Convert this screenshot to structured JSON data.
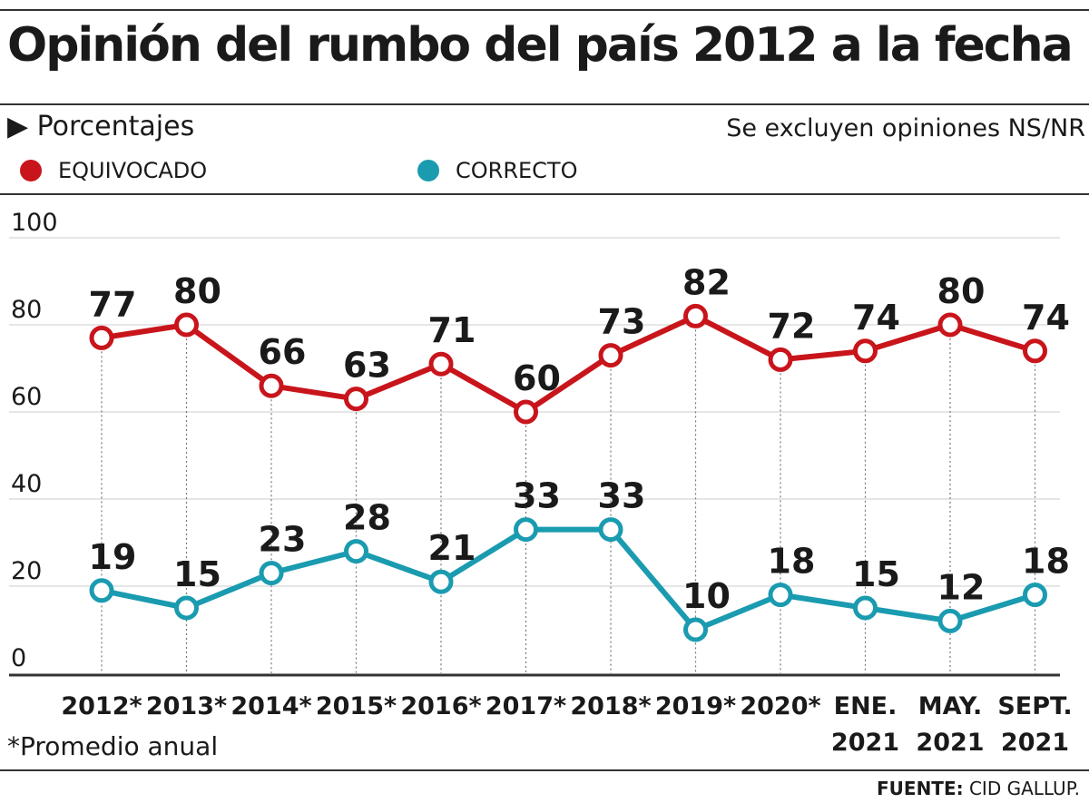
{
  "title": "Opinión del rumbo del país 2012 a la fecha",
  "subtitle": "Porcentajes",
  "note": "Se excluyen opiniones NS/NR",
  "footnote": "*Promedio anual",
  "source_label": "FUENTE:",
  "source": "CID GALLUP.",
  "chart_data": {
    "type": "line",
    "title": "Opinión del rumbo del país 2012 a la fecha",
    "ylim": [
      0,
      100
    ],
    "yticks": [
      0,
      20,
      40,
      60,
      80,
      100
    ],
    "grid": true,
    "legend_placement": "top-left",
    "categories": [
      [
        "2012*"
      ],
      [
        "2013*"
      ],
      [
        "2014*"
      ],
      [
        "2015*"
      ],
      [
        "2016*"
      ],
      [
        "2017*"
      ],
      [
        "2018*"
      ],
      [
        "2019*"
      ],
      [
        "2020*"
      ],
      [
        "ENE.",
        "2021"
      ],
      [
        "MAY.",
        "2021"
      ],
      [
        "SEPT.",
        "2021"
      ]
    ],
    "series": [
      {
        "name": "EQUIVOCADO",
        "color": "#c8151b",
        "values": [
          77,
          80,
          66,
          63,
          71,
          60,
          73,
          82,
          72,
          74,
          80,
          74
        ]
      },
      {
        "name": "CORRECTO",
        "color": "#1a9bb0",
        "values": [
          19,
          15,
          23,
          28,
          21,
          33,
          33,
          10,
          18,
          15,
          12,
          18
        ]
      }
    ]
  }
}
